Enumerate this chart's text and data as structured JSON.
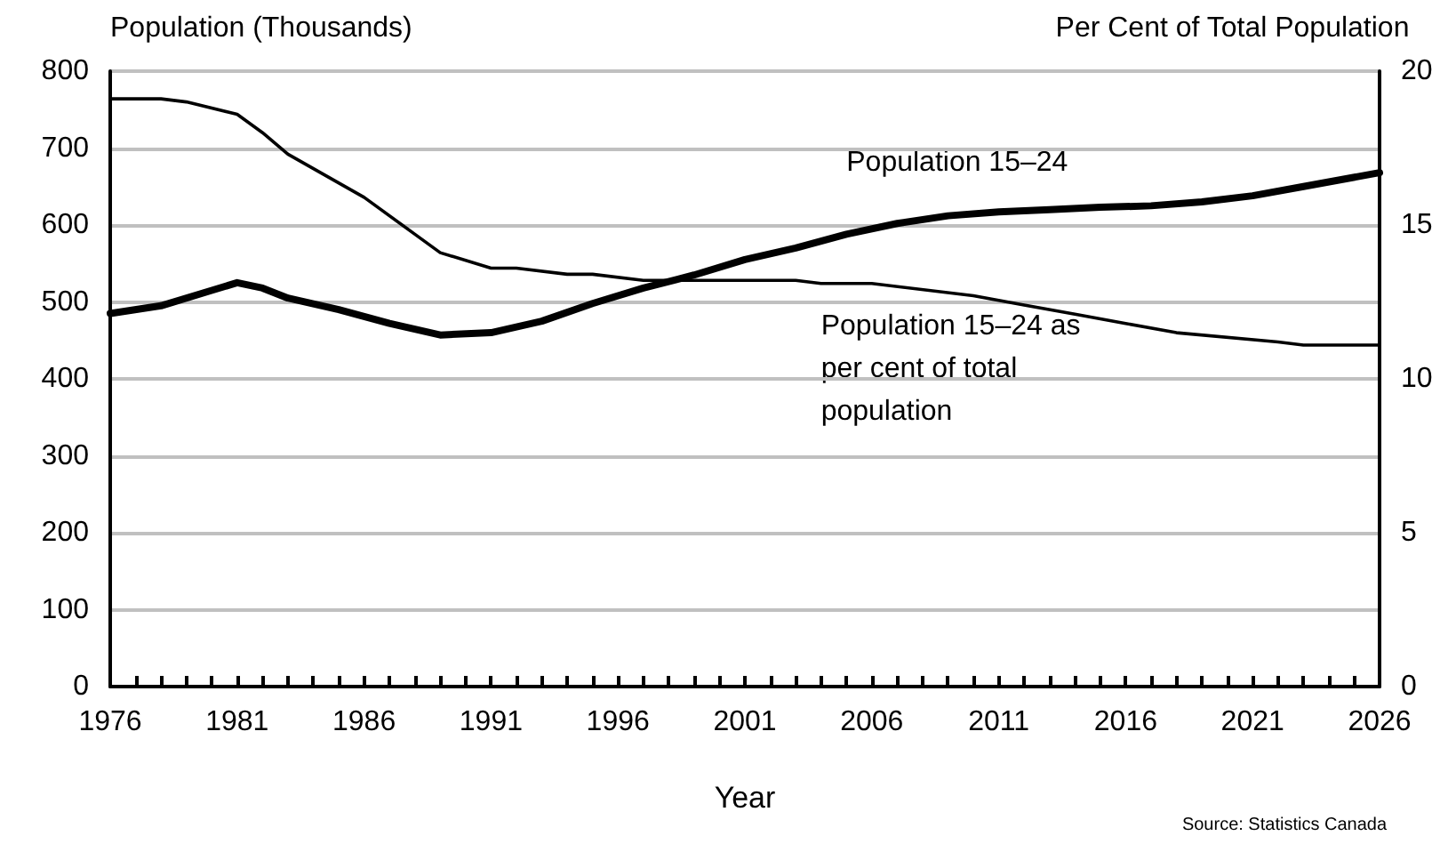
{
  "chart_data": {
    "type": "line",
    "xlabel": "Year",
    "ylabel": "Population (Thousands)",
    "y2label": "Per Cent of Total Population",
    "annotations": [
      "Source: Statistics Canada"
    ],
    "series": [
      {
        "name": "Population 15–24",
        "color": "#000000",
        "x": [
          1976,
          1978,
          1980,
          1981,
          1982,
          1983,
          1985,
          1987,
          1989,
          1991,
          1993,
          1995,
          1997,
          1999,
          2001,
          2003,
          2005,
          2007,
          2009,
          2011,
          2013,
          2015,
          2017,
          2019,
          2021,
          2023,
          2026
        ],
        "values": [
          485,
          495,
          515,
          525,
          518,
          505,
          490,
          472,
          457,
          460,
          475,
          498,
          518,
          535,
          555,
          570,
          588,
          602,
          612,
          617,
          620,
          623,
          625,
          630,
          638,
          650,
          668
        ]
      },
      {
        "name": "Population 15–24 as per cent of total population",
        "color": "#000000",
        "axis": "y2",
        "x": [
          1976,
          1978,
          1979,
          1981,
          1982,
          1983,
          1986,
          1988,
          1989,
          1991,
          1992,
          1994,
          1995,
          1997,
          2000,
          2003,
          2004,
          2006,
          2010,
          2012,
          2014,
          2016,
          2018,
          2022,
          2023,
          2026
        ],
        "values": [
          19.1,
          19.1,
          19.0,
          18.6,
          18.0,
          17.3,
          15.9,
          14.7,
          14.1,
          13.6,
          13.6,
          13.4,
          13.4,
          13.2,
          13.2,
          13.2,
          13.1,
          13.1,
          12.7,
          12.4,
          12.1,
          11.8,
          11.5,
          11.2,
          11.1,
          11.1
        ]
      }
    ],
    "xlim": [
      1976,
      2026
    ],
    "xticks": [
      1976,
      {
        "value": 1977,
        "label": null
      },
      {
        "value": 1978,
        "label": null
      },
      {
        "value": 1979,
        "label": null
      },
      {
        "value": 1980,
        "label": null
      },
      1981,
      {
        "value": 1982,
        "label": null
      },
      {
        "value": 1983,
        "label": null
      },
      {
        "value": 1984,
        "label": null
      },
      {
        "value": 1985,
        "label": null
      },
      1986,
      {
        "value": 1987,
        "label": null
      },
      {
        "value": 1988,
        "label": null
      },
      {
        "value": 1989,
        "label": null
      },
      {
        "value": 1990,
        "label": null
      },
      1991,
      {
        "value": 1992,
        "label": null
      },
      {
        "value": 1993,
        "label": null
      },
      {
        "value": 1994,
        "label": null
      },
      {
        "value": 1995,
        "label": null
      },
      1996,
      {
        "value": 1997,
        "label": null
      },
      {
        "value": 1998,
        "label": null
      },
      {
        "value": 1999,
        "label": null
      },
      {
        "value": 2000,
        "label": null
      },
      2001,
      {
        "value": 2002,
        "label": null
      },
      {
        "value": 2003,
        "label": null
      },
      {
        "value": 2004,
        "label": null
      },
      {
        "value": 2005,
        "label": null
      },
      2006,
      {
        "value": 2007,
        "label": null
      },
      {
        "value": 2008,
        "label": null
      },
      {
        "value": 2009,
        "label": null
      },
      {
        "value": 2010,
        "label": null
      },
      2011,
      {
        "value": 2012,
        "label": null
      },
      {
        "value": 2013,
        "label": null
      },
      {
        "value": 2014,
        "label": null
      },
      {
        "value": 2015,
        "label": null
      },
      2016,
      {
        "value": 2017,
        "label": null
      },
      {
        "value": 2018,
        "label": null
      },
      {
        "value": 2019,
        "label": null
      },
      {
        "value": 2020,
        "label": null
      },
      2021,
      {
        "value": 2022,
        "label": null
      },
      {
        "value": 2023,
        "label": null
      },
      {
        "value": 2024,
        "label": null
      },
      {
        "value": 2025,
        "label": null
      },
      2026
    ],
    "ylim": [
      0,
      800
    ],
    "yticks": [
      0,
      100,
      200,
      300,
      400,
      500,
      600,
      700,
      800
    ],
    "y2lim": [
      0,
      20
    ],
    "y2ticks": [
      0,
      5,
      10,
      15,
      20
    ],
    "grid": "y",
    "legend": false,
    "marker": "none",
    "line_style": "solid"
  }
}
